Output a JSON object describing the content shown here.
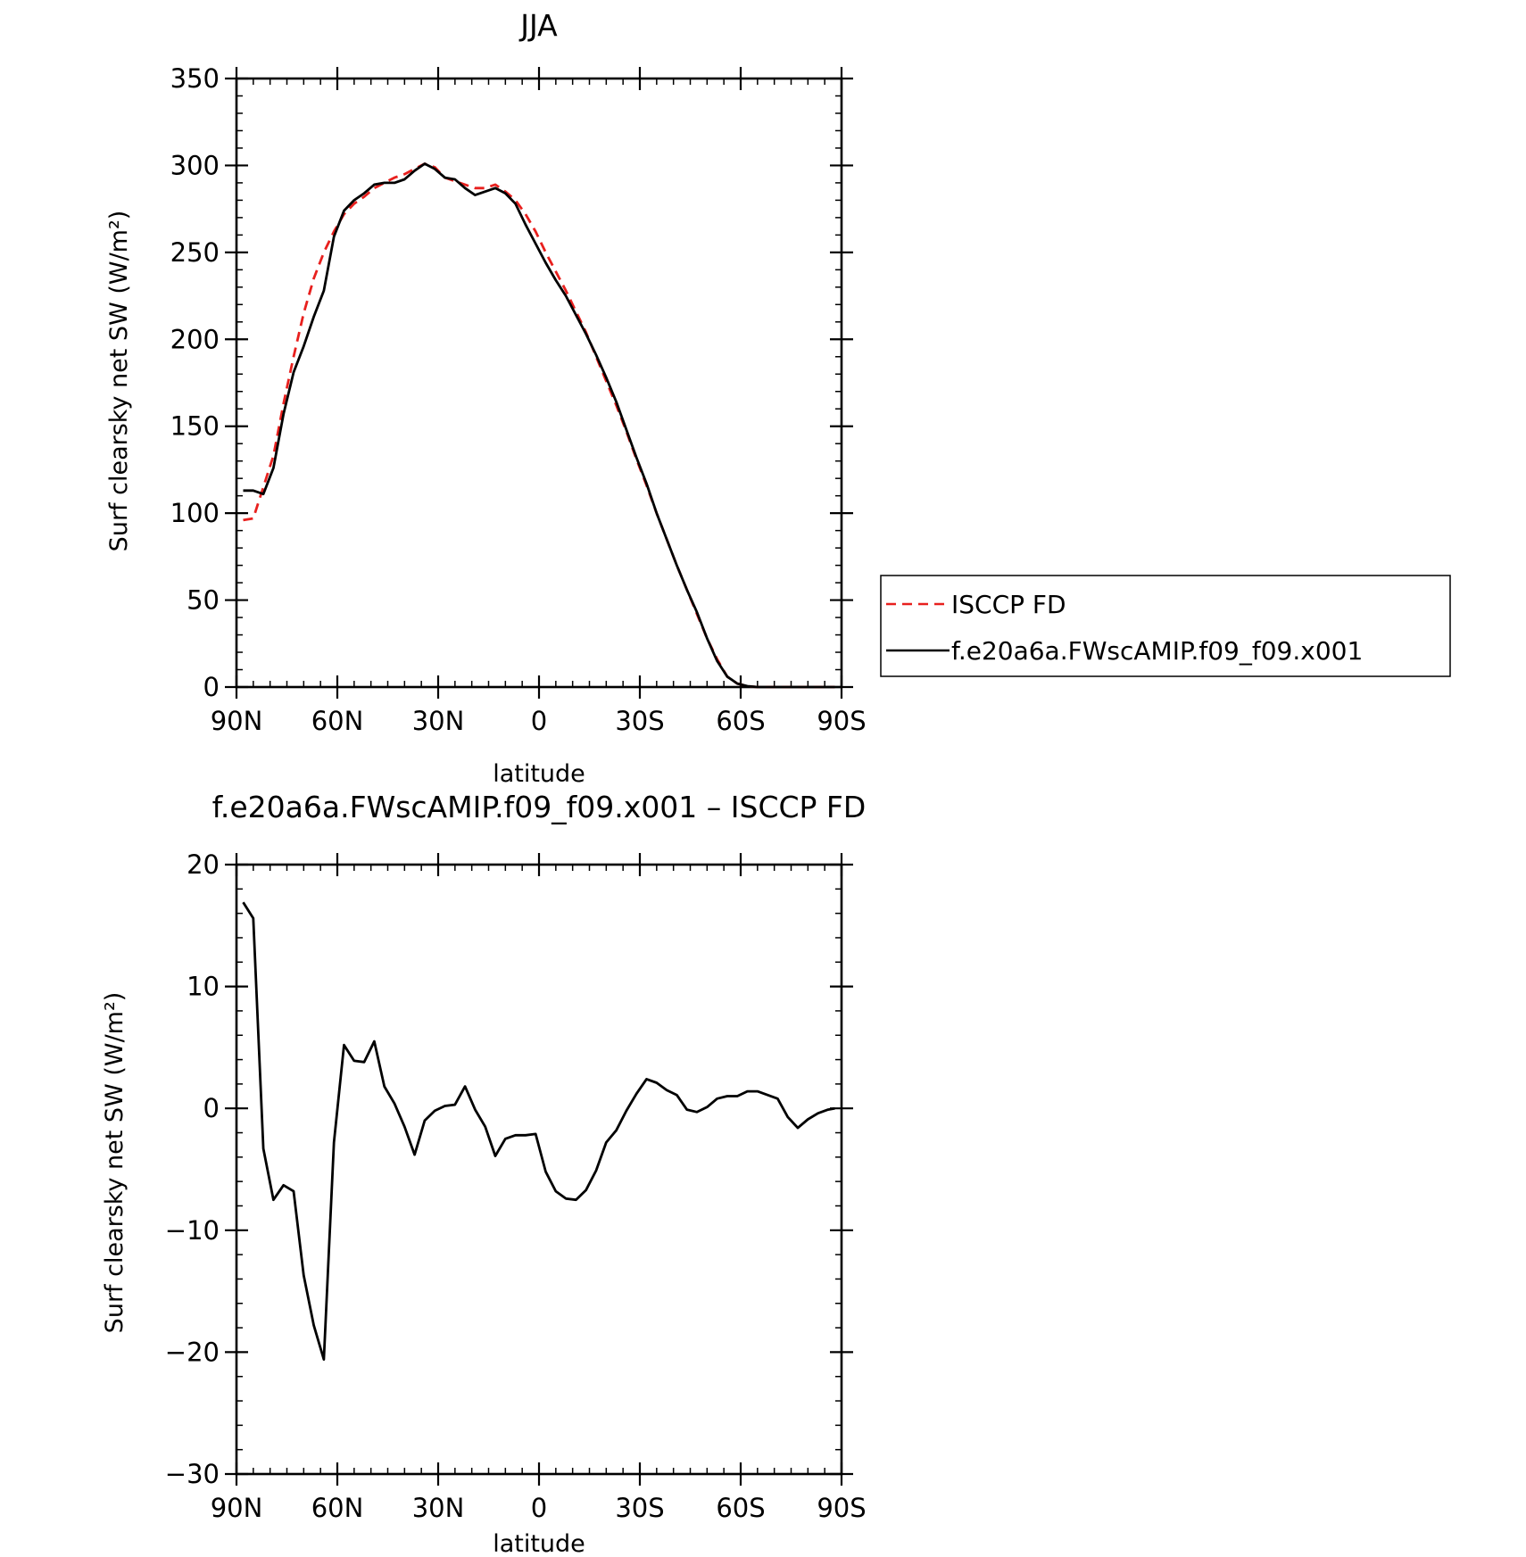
{
  "chart_data": [
    {
      "type": "line",
      "title": "JJA",
      "xlabel": "latitude",
      "ylabel": "Surf clearsky net SW (W/m²)",
      "xlim": [
        90,
        -90
      ],
      "ylim": [
        0,
        350
      ],
      "yticks": [
        0,
        50,
        100,
        150,
        200,
        250,
        300,
        350
      ],
      "xticks": [
        {
          "value": 90,
          "label": "90N"
        },
        {
          "value": 60,
          "label": "60N"
        },
        {
          "value": 30,
          "label": "30N"
        },
        {
          "value": 0,
          "label": "0"
        },
        {
          "value": -30,
          "label": "30S"
        },
        {
          "value": -60,
          "label": "60S"
        },
        {
          "value": -90,
          "label": "90S"
        }
      ],
      "grid": false,
      "legend_position": "right",
      "series": [
        {
          "name": "ISCCP FD",
          "color": "#e8201e",
          "dash": "dashed",
          "x": [
            88,
            85,
            82,
            79,
            76,
            73,
            70,
            67,
            64,
            61,
            58,
            55,
            52,
            49,
            46,
            43,
            40,
            37,
            34,
            31,
            28,
            25,
            22,
            19,
            16,
            13,
            10,
            7,
            4,
            1,
            -2,
            -5,
            -8,
            -11,
            -14,
            -17,
            -20,
            -23,
            -26,
            -29,
            -32,
            -35,
            -38,
            -41,
            -44,
            -47,
            -50,
            -53,
            -56,
            -59,
            -62,
            -65,
            -68,
            -71,
            -74,
            -77,
            -80,
            -83,
            -86,
            -88
          ],
          "y": [
            96,
            97,
            115,
            133,
            163,
            190,
            215,
            235,
            250,
            262,
            272,
            278,
            282,
            287,
            290,
            293,
            295,
            298,
            301,
            299,
            293,
            291,
            289,
            287,
            287,
            289,
            285,
            280,
            272,
            262,
            250,
            239,
            228,
            216,
            204,
            190,
            176,
            162,
            147,
            131,
            116,
            100,
            85,
            70,
            56,
            42,
            28,
            16,
            6,
            2,
            0.5,
            0,
            0,
            0,
            0,
            0,
            0,
            0,
            0,
            0
          ]
        },
        {
          "name": "f.e20a6a.FWscAMIP.f09_f09.x001",
          "color": "#000000",
          "dash": "solid",
          "x": [
            88,
            85,
            82,
            79,
            76,
            73,
            70,
            67,
            64,
            61,
            58,
            55,
            52,
            49,
            46,
            43,
            40,
            37,
            34,
            31,
            28,
            25,
            22,
            19,
            16,
            13,
            10,
            7,
            4,
            1,
            -2,
            -5,
            -8,
            -11,
            -14,
            -17,
            -20,
            -23,
            -26,
            -29,
            -32,
            -35,
            -38,
            -41,
            -44,
            -47,
            -50,
            -53,
            -56,
            -59,
            -62,
            -65,
            -68,
            -71,
            -74,
            -77,
            -80,
            -83,
            -86,
            -88
          ],
          "y": [
            113,
            113,
            111,
            126,
            157,
            181,
            196,
            213,
            228,
            259,
            274,
            280,
            284,
            289,
            290,
            290,
            292,
            297,
            301,
            298,
            293,
            292,
            287,
            283,
            285,
            287,
            284,
            278,
            266,
            255,
            244,
            234,
            225,
            214,
            203,
            191,
            178,
            164,
            148,
            132,
            117,
            100,
            85,
            70,
            56,
            43,
            28,
            15,
            6,
            2,
            0.5,
            0,
            0,
            0,
            0,
            0,
            0,
            0,
            0,
            0
          ]
        }
      ]
    },
    {
      "type": "line",
      "title": "f.e20a6a.FWscAMIP.f09_f09.x001 – ISCCP FD",
      "xlabel": "latitude",
      "ylabel": "Surf clearsky net SW (W/m²)",
      "xlim": [
        90,
        -90
      ],
      "ylim": [
        -30,
        20
      ],
      "yticks": [
        -30,
        -20,
        -10,
        0,
        10,
        20
      ],
      "xticks": [
        {
          "value": 90,
          "label": "90N"
        },
        {
          "value": 60,
          "label": "60N"
        },
        {
          "value": 30,
          "label": "30N"
        },
        {
          "value": 0,
          "label": "0"
        },
        {
          "value": -30,
          "label": "30S"
        },
        {
          "value": -60,
          "label": "60S"
        },
        {
          "value": -90,
          "label": "90S"
        }
      ],
      "grid": false,
      "series": [
        {
          "color": "#000000",
          "dash": "solid",
          "x": [
            88,
            85,
            82,
            79,
            76,
            73,
            70,
            67,
            64,
            61,
            58,
            55,
            52,
            49,
            46,
            43,
            40,
            37,
            34,
            31,
            28,
            25,
            22,
            19,
            16,
            13,
            10,
            7,
            4,
            1,
            -2,
            -5,
            -8,
            -11,
            -14,
            -17,
            -20,
            -23,
            -26,
            -29,
            -32,
            -35,
            -38,
            -41,
            -44,
            -47,
            -50,
            -53,
            -56,
            -59,
            -62,
            -65,
            -68,
            -71,
            -74,
            -77,
            -80,
            -83,
            -86,
            -88
          ],
          "y": [
            16.9,
            15.6,
            -3.3,
            -7.5,
            -6.3,
            -6.8,
            -13.7,
            -17.8,
            -20.6,
            -2.8,
            5.2,
            3.9,
            3.8,
            5.5,
            1.8,
            0.4,
            -1.5,
            -3.8,
            -1.0,
            -0.2,
            0.2,
            0.3,
            1.8,
            -0.1,
            -1.5,
            -3.9,
            -2.5,
            -2.2,
            -2.2,
            -2.1,
            -5.2,
            -6.8,
            -7.4,
            -7.5,
            -6.7,
            -5.1,
            -2.8,
            -1.8,
            -0.2,
            1.2,
            2.4,
            2.1,
            1.5,
            1.1,
            -0.1,
            -0.3,
            0.1,
            0.8,
            1.0,
            1.0,
            1.4,
            1.4,
            1.1,
            0.8,
            -0.7,
            -1.6,
            -0.9,
            -0.4,
            -0.1,
            0
          ]
        }
      ]
    }
  ],
  "legend": {
    "items": [
      {
        "label": "ISCCP FD",
        "color": "#e8201e",
        "dash": "dashed"
      },
      {
        "label": "f.e20a6a.FWscAMIP.f09_f09.x001",
        "color": "#000000",
        "dash": "solid"
      }
    ]
  }
}
